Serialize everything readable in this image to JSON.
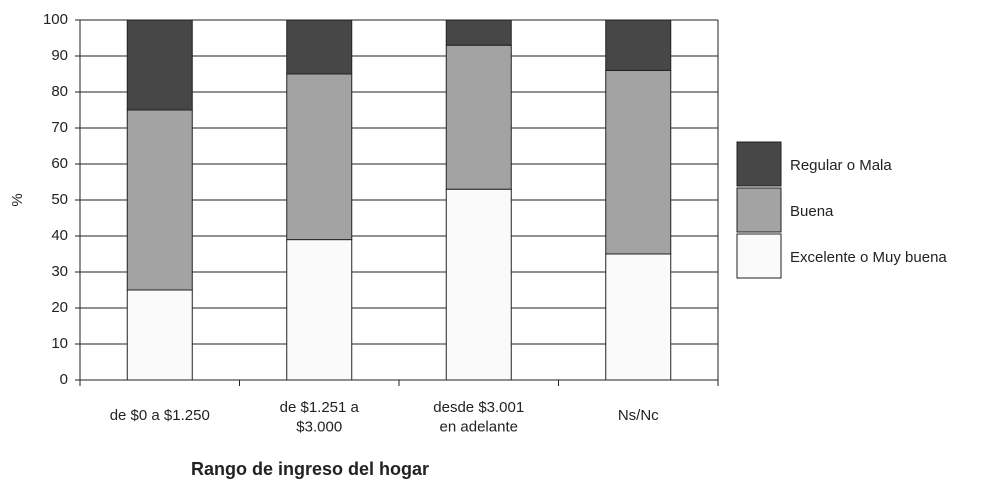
{
  "chart_data": {
    "type": "stacked_bar",
    "xlabel": "Rango de ingreso del hogar",
    "ylabel": "%",
    "categories": [
      "de $0 a $1.250",
      "de $1.251 a\n$3.000",
      "desde $3.001\nen adelante",
      "Ns/Nc"
    ],
    "series": [
      {
        "name": "Excelente o Muy buena",
        "color": "#fafafa",
        "values": [
          25,
          39,
          53,
          35
        ]
      },
      {
        "name": "Buena",
        "color": "#a3a3a3",
        "values": [
          50,
          46,
          40,
          51
        ]
      },
      {
        "name": "Regular o Mala",
        "color": "#474747",
        "values": [
          25,
          15,
          7,
          14
        ]
      }
    ],
    "ylim": [
      0,
      100
    ],
    "yticks": [
      0,
      10,
      20,
      30,
      40,
      50,
      60,
      70,
      80,
      90,
      100
    ],
    "grid": true,
    "legend": "right"
  }
}
